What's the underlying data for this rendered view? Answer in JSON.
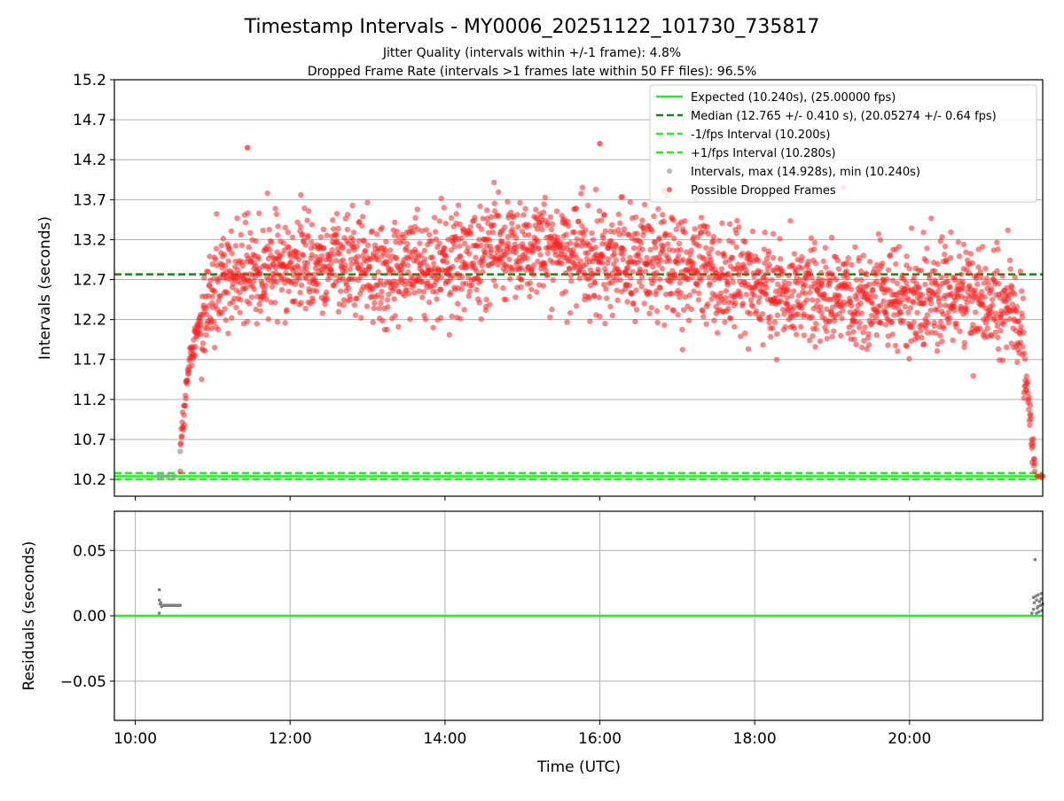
{
  "chart_data": [
    {
      "type": "scatter",
      "title": "Timestamp Intervals - MY0006_20251122_101730_735817",
      "subtitle_lines": [
        "Jitter Quality (intervals within +/-1 frame): 4.8%",
        "Dropped Frame Rate (intervals >1 frames late within 50 FF files): 96.5%"
      ],
      "xlabel": "",
      "ylabel": "Intervals (seconds)",
      "x_unit": "hours since 00:00 UTC",
      "xlim": [
        9.73,
        21.72
      ],
      "ylim": [
        9.99,
        15.2
      ],
      "yticks": [
        10.2,
        10.7,
        11.2,
        11.7,
        12.2,
        12.7,
        13.2,
        13.7,
        14.2,
        14.7,
        15.2
      ],
      "yticklabels": [
        "10.2",
        "10.7",
        "11.2",
        "11.7",
        "12.2",
        "12.7",
        "13.2",
        "13.7",
        "14.2",
        "14.7",
        "15.2"
      ],
      "grid": "horizontal",
      "legend_position": "top-right",
      "legend": [
        "Expected (10.240s), (25.00000 fps)",
        "Median (12.765 +/- 0.410 s), (20.05274 +/- 0.64 fps)",
        "-1/fps Interval (10.200s)",
        "+1/fps Interval (10.280s)",
        "Intervals, max (14.928s), min (10.240s)",
        "Possible Dropped Frames"
      ],
      "reference_lines": [
        {
          "label": "Expected",
          "y": 10.24,
          "color": "#22ee22",
          "style": "solid"
        },
        {
          "label": "Median",
          "y": 12.765,
          "color": "#118811",
          "style": "dashed"
        },
        {
          "label": "-1/fps",
          "y": 10.2,
          "color": "#22ee22",
          "style": "dashed"
        },
        {
          "label": "+1/fps",
          "y": 10.28,
          "color": "#22ee22",
          "style": "dashed"
        }
      ],
      "series": [
        {
          "name": "Intervals, max (14.928s), min (10.240s)",
          "color": "#999999",
          "points": [
            [
              10.3,
              10.24
            ],
            [
              10.35,
              10.24
            ],
            [
              10.42,
              10.24
            ],
            [
              10.5,
              10.24
            ],
            [
              10.58,
              10.55
            ]
          ]
        },
        {
          "name": "Possible Dropped Frames",
          "color": "#ff2020",
          "generated_trend": {
            "x_start": 10.58,
            "x_end": 21.62,
            "count": 2600,
            "anchors": [
              [
                10.58,
                10.6
              ],
              [
                10.7,
                11.7
              ],
              [
                10.85,
                12.2
              ],
              [
                11.0,
                12.55
              ],
              [
                11.5,
                12.85
              ],
              [
                12.5,
                12.95
              ],
              [
                13.5,
                12.75
              ],
              [
                14.5,
                13.05
              ],
              [
                15.5,
                13.05
              ],
              [
                16.5,
                12.95
              ],
              [
                17.5,
                12.75
              ],
              [
                18.5,
                12.5
              ],
              [
                19.5,
                12.45
              ],
              [
                20.5,
                12.5
              ],
              [
                21.3,
                12.35
              ],
              [
                21.45,
                12.0
              ],
              [
                21.55,
                11.0
              ],
              [
                21.62,
                10.3
              ]
            ],
            "spread": 0.32
          },
          "points": [
            [
              11.45,
              14.35
            ],
            [
              16.0,
              14.4
            ],
            [
              19.15,
              13.85
            ],
            [
              21.65,
              10.24
            ],
            [
              21.68,
              10.24
            ],
            [
              21.72,
              10.24
            ]
          ]
        }
      ]
    },
    {
      "type": "scatter",
      "title": "",
      "xlabel": "Time (UTC)",
      "ylabel": "Residuals (seconds)",
      "x_unit": "hours since 00:00 UTC",
      "xlim": [
        9.73,
        21.72
      ],
      "ylim": [
        -0.08,
        0.08
      ],
      "xticks": [
        10,
        12,
        14,
        16,
        18,
        20
      ],
      "xticklabels": [
        "10:00",
        "12:00",
        "14:00",
        "16:00",
        "18:00",
        "20:00"
      ],
      "yticks": [
        -0.05,
        0.0,
        0.05
      ],
      "yticklabels": [
        "−0.05",
        "0.00",
        "0.05"
      ],
      "grid": "both",
      "reference_lines": [
        {
          "label": "zero",
          "y": 0.0,
          "color": "#22ee22",
          "style": "solid"
        }
      ],
      "series": [
        {
          "name": "",
          "color": "#808080",
          "points": [
            [
              10.31,
              0.02
            ],
            [
              10.31,
              0.012
            ],
            [
              10.31,
              0.002
            ],
            [
              10.32,
              0.009
            ],
            [
              10.33,
              0.01
            ],
            [
              10.34,
              0.007
            ],
            [
              10.36,
              0.008
            ],
            [
              10.38,
              0.008
            ],
            [
              10.4,
              0.008
            ],
            [
              10.42,
              0.008
            ],
            [
              10.44,
              0.008
            ],
            [
              10.46,
              0.008
            ],
            [
              10.48,
              0.008
            ],
            [
              10.5,
              0.008
            ],
            [
              10.52,
              0.008
            ],
            [
              10.54,
              0.008
            ],
            [
              10.56,
              0.008
            ],
            [
              10.58,
              0.008
            ],
            [
              21.62,
              0.043
            ],
            [
              21.58,
              0.002
            ],
            [
              21.6,
              0.005
            ],
            [
              21.61,
              0.01
            ],
            [
              21.63,
              0.015
            ],
            [
              21.64,
              0.012
            ],
            [
              21.65,
              0.006
            ],
            [
              21.66,
              0.016
            ],
            [
              21.67,
              0.003
            ],
            [
              21.68,
              0.011
            ],
            [
              21.69,
              0.008
            ],
            [
              21.7,
              0.013
            ],
            [
              21.71,
              0.004
            ],
            [
              21.72,
              0.009
            ],
            [
              21.6,
              0.014
            ],
            [
              21.64,
              0.002
            ],
            [
              21.66,
              0.007
            ],
            [
              21.7,
              0.017
            ]
          ]
        }
      ]
    }
  ]
}
